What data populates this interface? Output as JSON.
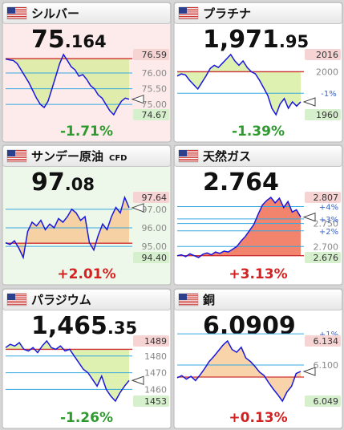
{
  "tiles": [
    {
      "name": "シルバー",
      "price_int": "75",
      "price_dec": ".164",
      "change": "-1.71%",
      "change_color": "#2e9a2e",
      "background": "#fdeaea",
      "fill_color": "#d4ec96",
      "high": {
        "value": 76.59,
        "label": "76.59"
      },
      "low": {
        "value": 74.67,
        "label": "74.67"
      },
      "reference": 76.46,
      "yticks": [
        {
          "value": 76,
          "label": "76.00"
        },
        {
          "value": 75.5,
          "label": "75.50"
        },
        {
          "value": 75,
          "label": "75.00"
        }
      ],
      "pct_ticks": [],
      "values": [
        76.45,
        76.42,
        76.4,
        76.3,
        76.1,
        75.9,
        75.7,
        75.45,
        75.2,
        75.0,
        74.9,
        75.1,
        75.5,
        75.9,
        76.3,
        76.59,
        76.4,
        76.2,
        76.1,
        75.9,
        75.95,
        75.8,
        75.6,
        75.5,
        75.3,
        75.2,
        75.0,
        74.8,
        74.67,
        74.9,
        75.1,
        75.2,
        75.164
      ]
    },
    {
      "name": "プラチナ",
      "price_int": "1,971",
      "price_dec": ".95",
      "change": "-1.39%",
      "change_color": "#2e9a2e",
      "background": "#ffffff",
      "fill_color": "#d4ec96",
      "high": {
        "value": 2016,
        "label": "2016"
      },
      "low": {
        "value": 1960,
        "label": "1960"
      },
      "reference": 2000,
      "yticks": [
        2000
      ],
      "pct_ticks": [
        {
          "value": 1980,
          "label": "-1%"
        }
      ],
      "values": [
        1996,
        1998,
        1997,
        1992,
        1988,
        1984,
        1990,
        1996,
        2003,
        2006,
        2004,
        2008,
        2012,
        2016,
        2010,
        2006,
        2010,
        2004,
        2000,
        1998,
        1992,
        1985,
        1978,
        1966,
        1960,
        1970,
        1975,
        1966,
        1972,
        1968,
        1971.95
      ]
    },
    {
      "name": "サンデー原油",
      "tag": "CFD",
      "price_int": "97",
      "price_dec": ".08",
      "change": "+2.01%",
      "change_color": "#d42020",
      "background": "#eef8ea",
      "fill_color": "#f7c48c",
      "high": {
        "value": 97.64,
        "label": "97.64"
      },
      "low": {
        "value": 94.4,
        "label": "94.40"
      },
      "reference": 95.17,
      "yticks": [
        {
          "value": 97,
          "label": "97.00"
        },
        {
          "value": 96,
          "label": "96.00"
        },
        {
          "value": 95,
          "label": "95.00"
        }
      ],
      "pct_ticks": [],
      "values": [
        95.2,
        95.1,
        95.3,
        94.9,
        94.4,
        95.8,
        96.3,
        96.1,
        96.4,
        95.9,
        96.2,
        96.0,
        96.5,
        96.3,
        96.6,
        97.0,
        96.8,
        96.4,
        96.6,
        95.2,
        94.8,
        95.6,
        96.2,
        95.9,
        96.6,
        97.1,
        96.8,
        97.64,
        97.08
      ]
    },
    {
      "name": "天然ガス",
      "price_int": "2.764",
      "change": "+3.13%",
      "change_color": "#d42020",
      "background": "#ffffff",
      "fill_color": "#ee5a3c",
      "high": {
        "value": 2.807,
        "label": "2.807"
      },
      "low": {
        "value": 2.676,
        "label": "2.676"
      },
      "reference": 2.68,
      "yticks": [
        {
          "value": 2.75,
          "label": "2.750"
        },
        {
          "value": 2.7,
          "label": "2.700"
        }
      ],
      "pct_ticks": [
        {
          "value": 2.787,
          "label": "+4%"
        },
        {
          "value": 2.76,
          "label": "+3%"
        },
        {
          "value": 2.734,
          "label": "+2%"
        }
      ],
      "values": [
        2.68,
        2.682,
        2.678,
        2.684,
        2.68,
        2.676,
        2.683,
        2.686,
        2.682,
        2.688,
        2.685,
        2.69,
        2.688,
        2.694,
        2.7,
        2.712,
        2.722,
        2.735,
        2.748,
        2.77,
        2.79,
        2.8,
        2.807,
        2.795,
        2.805,
        2.785,
        2.798,
        2.775,
        2.78,
        2.764
      ]
    },
    {
      "name": "パラジウム",
      "price_int": "1,465",
      "price_dec": ".35",
      "change": "-1.26%",
      "change_color": "#2e9a2e",
      "background": "#ffffff",
      "fill_color": "#d4ec96",
      "high": {
        "value": 1489,
        "label": "1489"
      },
      "low": {
        "value": 1453,
        "label": "1453"
      },
      "reference": 1484,
      "yticks": [
        1480,
        1470,
        1460
      ],
      "pct_ticks": [],
      "values": [
        1485,
        1487,
        1486,
        1488,
        1484,
        1483,
        1485,
        1482,
        1486,
        1489,
        1485,
        1484,
        1486,
        1483,
        1484,
        1480,
        1476,
        1472,
        1470,
        1466,
        1462,
        1468,
        1460,
        1456,
        1453,
        1458,
        1462,
        1465.35
      ]
    },
    {
      "name": "銅",
      "price_int": "6.0909",
      "change": "+0.13%",
      "change_color": "#d42020",
      "background": "#ffffff",
      "fill_color": "#f7c48c",
      "high": {
        "value": 6.134,
        "label": "6.134"
      },
      "low": {
        "value": 6.049,
        "label": "6.049"
      },
      "reference": 6.083,
      "yticks": [
        {
          "value": 6.1,
          "label": "6.100"
        }
      ],
      "pct_ticks": [
        {
          "value": 6.144,
          "label": "+1%"
        }
      ],
      "values": [
        6.082,
        6.085,
        6.08,
        6.084,
        6.078,
        6.086,
        6.095,
        6.105,
        6.112,
        6.12,
        6.128,
        6.134,
        6.122,
        6.118,
        6.125,
        6.11,
        6.105,
        6.098,
        6.09,
        6.085,
        6.075,
        6.066,
        6.058,
        6.049,
        6.062,
        6.07,
        6.088,
        6.0909
      ]
    }
  ]
}
